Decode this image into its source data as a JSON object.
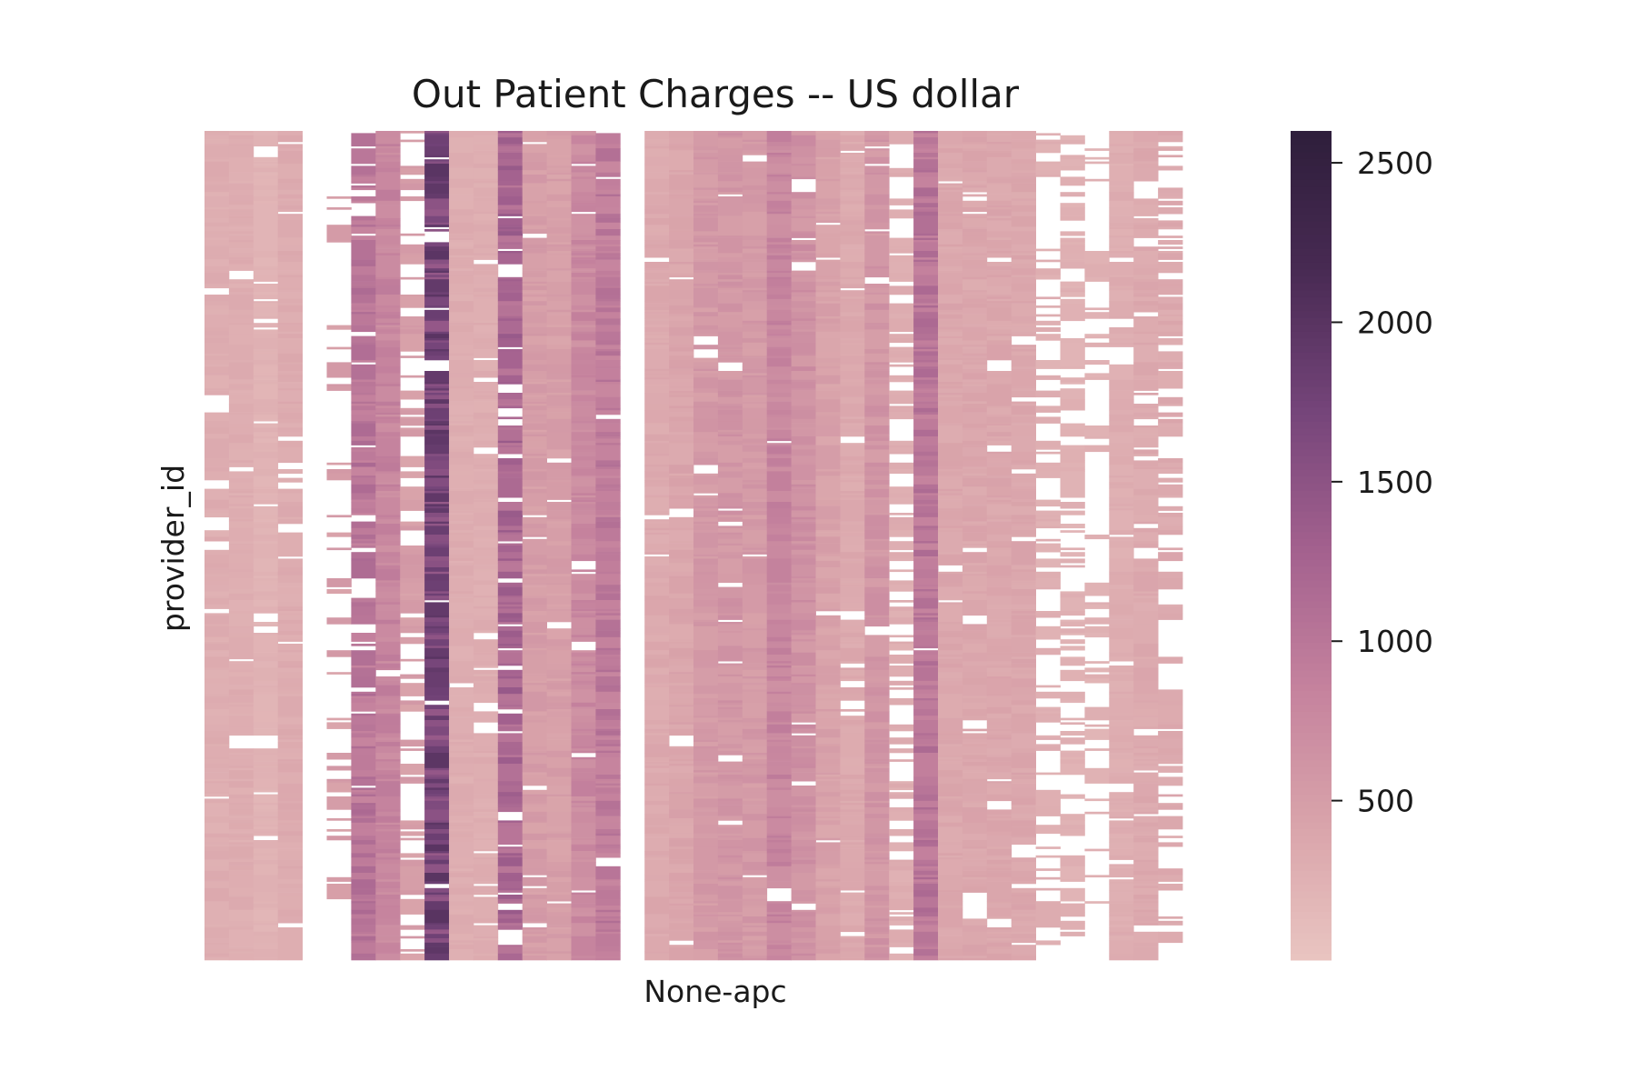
{
  "chart_data": {
    "type": "heatmap",
    "title": "Out Patient Charges -- US dollar",
    "xlabel": "None-apc",
    "ylabel": "provider_id",
    "x_tick_labels_shown": false,
    "y_tick_labels_shown": false,
    "n_columns": 41,
    "approx_rows": 3000,
    "colorbar": {
      "min": 0,
      "max": 2600,
      "ticks": [
        500,
        1000,
        1500,
        2000,
        2500
      ],
      "colors": [
        "#e9c5c1",
        "#d9a3aa",
        "#c4819d",
        "#a2608e",
        "#744479",
        "#482a53",
        "#2e1e3b"
      ]
    },
    "missing_color": "#ffffff",
    "column_typical_charge": [
      300,
      300,
      230,
      320,
      2000,
      500,
      1000,
      800,
      500,
      1700,
      300,
      300,
      1200,
      500,
      480,
      750,
      950,
      0,
      350,
      400,
      550,
      600,
      550,
      800,
      650,
      450,
      350,
      600,
      300,
      1000,
      380,
      380,
      380,
      380,
      280,
      250,
      250,
      300,
      350,
      350,
      2000
    ],
    "column_missing_rate": [
      0.08,
      0.03,
      0.06,
      0.04,
      0.96,
      0.85,
      0.12,
      0.02,
      0.55,
      0.05,
      0.04,
      0.06,
      0.12,
      0.06,
      0.04,
      0.04,
      0.03,
      1.0,
      0.02,
      0.02,
      0.03,
      0.05,
      0.03,
      0.03,
      0.03,
      0.02,
      0.05,
      0.06,
      0.45,
      0.02,
      0.03,
      0.04,
      0.04,
      0.05,
      0.55,
      0.45,
      0.75,
      0.05,
      0.12,
      0.35,
      0.97
    ],
    "column_top_fraction": [
      1,
      1,
      1,
      1,
      0.03,
      1,
      1,
      1,
      1,
      1,
      1,
      1,
      1,
      1,
      1,
      1,
      1,
      1,
      1,
      1,
      1,
      1,
      1,
      1,
      1,
      1,
      1,
      1,
      1,
      1,
      1,
      1,
      1,
      1,
      0.98,
      0.97,
      0.93,
      1,
      1,
      0.97,
      0.18
    ]
  }
}
